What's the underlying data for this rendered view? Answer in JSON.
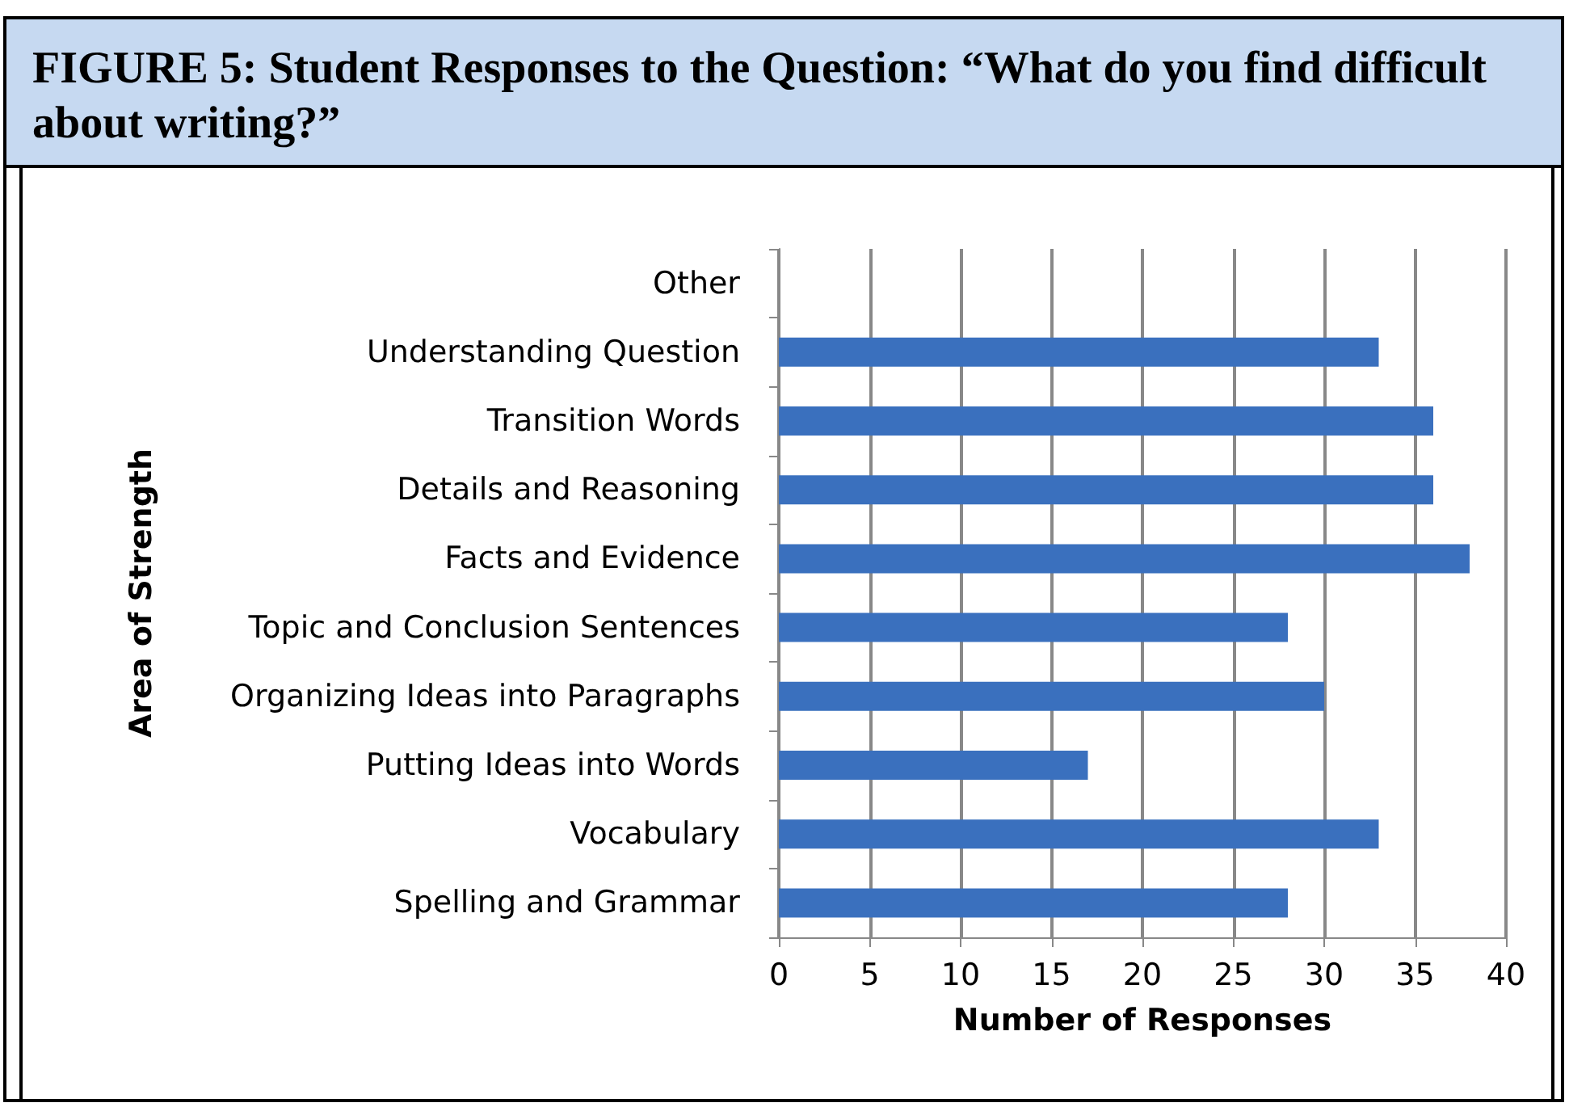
{
  "chart_data": {
    "type": "bar",
    "orientation": "horizontal",
    "title": "FIGURE 5: Student Responses to the Question: “What do you find difficult about writing?”",
    "xlabel": "Number of Responses",
    "ylabel": "Area of Strength",
    "categories": [
      "Other",
      "Understanding Question",
      "Transition Words",
      "Details and Reasoning",
      "Facts and Evidence",
      "Topic and Conclusion Sentences",
      "Organizing Ideas into Paragraphs",
      "Putting Ideas into Words",
      "Vocabulary",
      "Spelling and Grammar"
    ],
    "values": [
      0,
      33,
      36,
      36,
      38,
      28,
      30,
      17,
      33,
      28
    ],
    "color": "#3a70be",
    "xlim": [
      0,
      40
    ],
    "xticks": [
      0,
      5,
      10,
      15,
      20,
      25,
      30,
      35,
      40
    ],
    "grid": "x"
  }
}
